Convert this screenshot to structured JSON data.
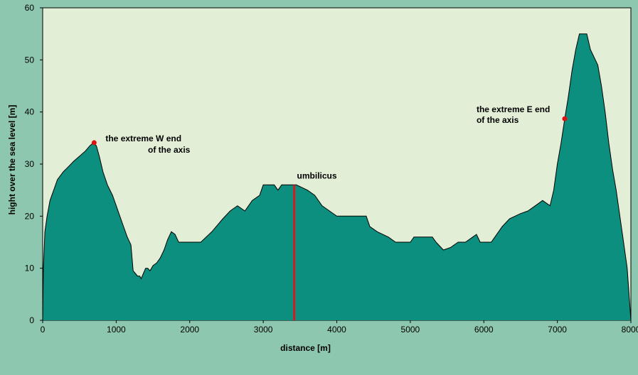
{
  "chart_data": {
    "type": "area",
    "title": "",
    "xlabel": "distance [m]",
    "ylabel": "hight over the sea level [m]",
    "xlim": [
      0,
      8000
    ],
    "ylim": [
      0,
      60
    ],
    "x_ticks": [
      0,
      1000,
      2000,
      3000,
      4000,
      5000,
      6000,
      7000,
      8000
    ],
    "y_ticks": [
      0,
      10,
      20,
      30,
      40,
      50,
      60
    ],
    "grid": false,
    "legend": "none",
    "colors": {
      "background": "#8ec7af",
      "plot_area": "#e2efd6",
      "fill": "#0d8f80",
      "outline": "#000000",
      "marker": "#dd1111",
      "umbilicus_line": "#d41d1d"
    },
    "series": [
      {
        "points": [
          [
            0,
            0
          ],
          [
            10,
            10
          ],
          [
            30,
            17
          ],
          [
            60,
            20
          ],
          [
            100,
            23
          ],
          [
            150,
            25
          ],
          [
            200,
            27
          ],
          [
            280,
            28.5
          ],
          [
            350,
            29.5
          ],
          [
            420,
            30.5
          ],
          [
            500,
            31.5
          ],
          [
            580,
            32.5
          ],
          [
            640,
            33.5
          ],
          [
            690,
            34.1
          ],
          [
            730,
            33.5
          ],
          [
            770,
            31.5
          ],
          [
            820,
            28.5
          ],
          [
            880,
            26
          ],
          [
            950,
            24
          ],
          [
            1000,
            22
          ],
          [
            1050,
            20
          ],
          [
            1100,
            18
          ],
          [
            1150,
            16
          ],
          [
            1200,
            14.5
          ],
          [
            1230,
            9.5
          ],
          [
            1260,
            9
          ],
          [
            1290,
            8.5
          ],
          [
            1320,
            8.5
          ],
          [
            1340,
            8
          ],
          [
            1370,
            9
          ],
          [
            1400,
            10
          ],
          [
            1430,
            10
          ],
          [
            1460,
            9.5
          ],
          [
            1500,
            10.5
          ],
          [
            1550,
            11
          ],
          [
            1600,
            12
          ],
          [
            1650,
            13.5
          ],
          [
            1700,
            15.5
          ],
          [
            1750,
            17
          ],
          [
            1800,
            16.5
          ],
          [
            1850,
            15
          ],
          [
            1900,
            15
          ],
          [
            2000,
            15
          ],
          [
            2150,
            15
          ],
          [
            2300,
            17
          ],
          [
            2450,
            19.5
          ],
          [
            2550,
            21
          ],
          [
            2650,
            22
          ],
          [
            2750,
            21
          ],
          [
            2850,
            23
          ],
          [
            2950,
            24
          ],
          [
            3000,
            26
          ],
          [
            3150,
            26
          ],
          [
            3200,
            25
          ],
          [
            3250,
            26
          ],
          [
            3350,
            26
          ],
          [
            3450,
            26
          ],
          [
            3600,
            25
          ],
          [
            3700,
            24
          ],
          [
            3800,
            22
          ],
          [
            3900,
            21
          ],
          [
            4000,
            20
          ],
          [
            4250,
            20
          ],
          [
            4400,
            20
          ],
          [
            4450,
            18
          ],
          [
            4550,
            17
          ],
          [
            4700,
            16
          ],
          [
            4800,
            15
          ],
          [
            5000,
            15
          ],
          [
            5050,
            16
          ],
          [
            5300,
            16
          ],
          [
            5350,
            15
          ],
          [
            5450,
            13.5
          ],
          [
            5550,
            14
          ],
          [
            5650,
            15
          ],
          [
            5750,
            15
          ],
          [
            5850,
            16
          ],
          [
            5900,
            16.5
          ],
          [
            5950,
            15
          ],
          [
            6100,
            15
          ],
          [
            6150,
            16
          ],
          [
            6250,
            18
          ],
          [
            6350,
            19.5
          ],
          [
            6500,
            20.5
          ],
          [
            6600,
            21
          ],
          [
            6700,
            22
          ],
          [
            6800,
            23
          ],
          [
            6900,
            22
          ],
          [
            6950,
            25
          ],
          [
            7000,
            30
          ],
          [
            7050,
            34
          ],
          [
            7100,
            38.7
          ],
          [
            7150,
            43
          ],
          [
            7200,
            48
          ],
          [
            7250,
            52
          ],
          [
            7300,
            55
          ],
          [
            7400,
            55
          ],
          [
            7450,
            52
          ],
          [
            7550,
            49
          ],
          [
            7600,
            45
          ],
          [
            7650,
            40
          ],
          [
            7700,
            34
          ],
          [
            7750,
            29
          ],
          [
            7800,
            25
          ],
          [
            7850,
            20
          ],
          [
            7900,
            15
          ],
          [
            7950,
            10
          ],
          [
            8000,
            0
          ]
        ]
      }
    ],
    "markers": [
      {
        "x": 700,
        "y": 34.1,
        "label_lines": [
          "the extreme W end",
          "of the axis"
        ]
      },
      {
        "x": 7100,
        "y": 38.7,
        "label_lines": [
          "the extreme E end",
          "of the axis"
        ]
      }
    ],
    "vertical_lines": [
      {
        "x": 3420,
        "y_from": 0,
        "y_to": 26,
        "label": "umbilicus"
      }
    ]
  }
}
